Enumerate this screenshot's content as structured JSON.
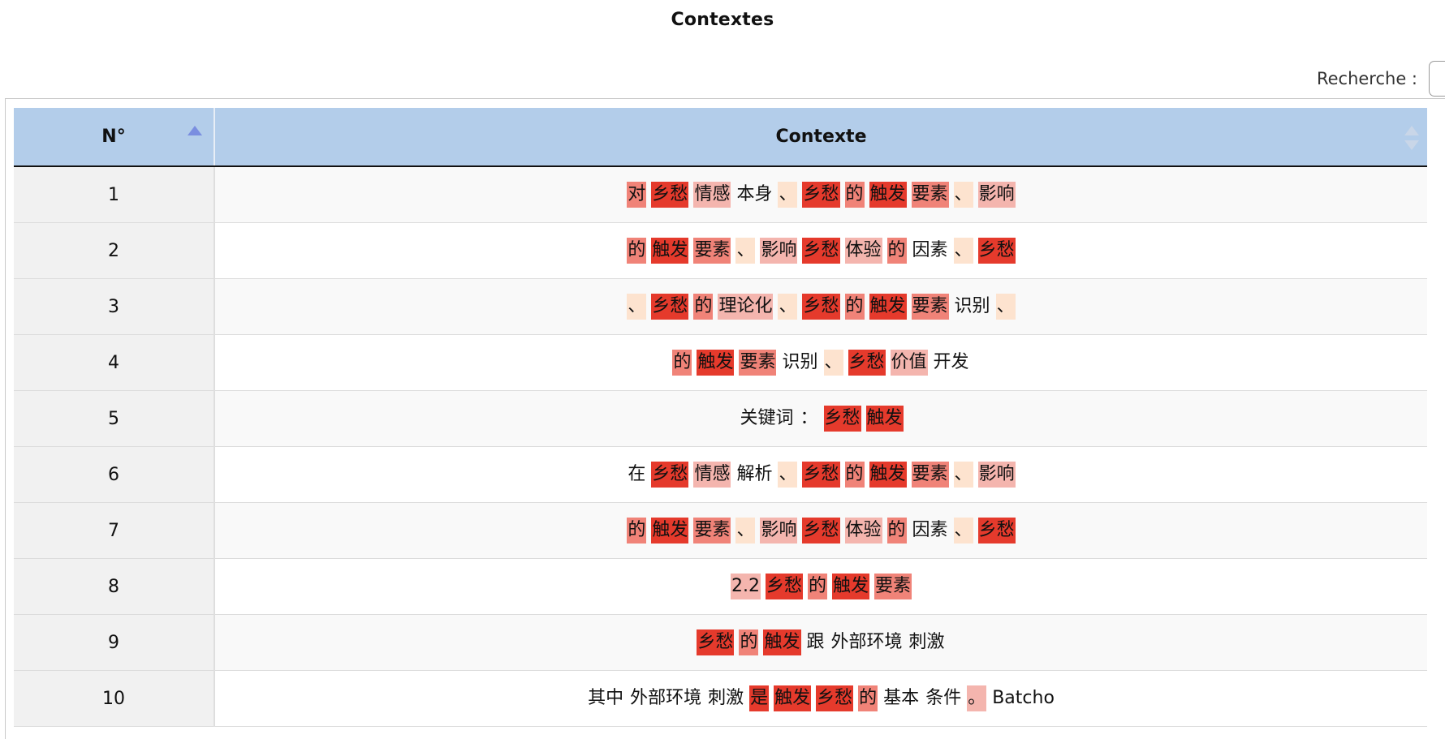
{
  "page": {
    "title": "Contextes"
  },
  "search": {
    "label": "Recherche :",
    "value": ""
  },
  "table": {
    "columns": [
      "N°",
      "Contexte"
    ],
    "rows": [
      {
        "num": "1",
        "tokens": [
          {
            "t": "对",
            "h": "h2"
          },
          {
            "t": "乡愁",
            "h": "h1"
          },
          {
            "t": "情感",
            "h": "h3"
          },
          {
            "t": "本身",
            "h": "h0"
          },
          {
            "t": "、",
            "h": "h4"
          },
          {
            "t": "乡愁",
            "h": "h1"
          },
          {
            "t": "的",
            "h": "h2"
          },
          {
            "t": "触发",
            "h": "h1"
          },
          {
            "t": "要素",
            "h": "h2"
          },
          {
            "t": "、",
            "h": "h4"
          },
          {
            "t": "影响",
            "h": "h3"
          }
        ]
      },
      {
        "num": "2",
        "tokens": [
          {
            "t": "的",
            "h": "h2"
          },
          {
            "t": "触发",
            "h": "h1"
          },
          {
            "t": "要素",
            "h": "h2"
          },
          {
            "t": "、",
            "h": "h4"
          },
          {
            "t": "影响",
            "h": "h3"
          },
          {
            "t": "乡愁",
            "h": "h1"
          },
          {
            "t": "体验",
            "h": "h3"
          },
          {
            "t": "的",
            "h": "h2"
          },
          {
            "t": "因素",
            "h": "h0"
          },
          {
            "t": "、",
            "h": "h4"
          },
          {
            "t": "乡愁",
            "h": "h1"
          }
        ]
      },
      {
        "num": "3",
        "tokens": [
          {
            "t": "、",
            "h": "h4"
          },
          {
            "t": "乡愁",
            "h": "h1"
          },
          {
            "t": "的",
            "h": "h2"
          },
          {
            "t": "理论化",
            "h": "h3"
          },
          {
            "t": "、",
            "h": "h4"
          },
          {
            "t": "乡愁",
            "h": "h1"
          },
          {
            "t": "的",
            "h": "h2"
          },
          {
            "t": "触发",
            "h": "h1"
          },
          {
            "t": "要素",
            "h": "h2"
          },
          {
            "t": "识别",
            "h": "h0"
          },
          {
            "t": "、",
            "h": "h4"
          }
        ]
      },
      {
        "num": "4",
        "tokens": [
          {
            "t": "的",
            "h": "h2"
          },
          {
            "t": "触发",
            "h": "h1"
          },
          {
            "t": "要素",
            "h": "h2"
          },
          {
            "t": "识别",
            "h": "h0"
          },
          {
            "t": "、",
            "h": "h4"
          },
          {
            "t": "乡愁",
            "h": "h1"
          },
          {
            "t": "价值",
            "h": "h3"
          },
          {
            "t": "开发",
            "h": "h0"
          }
        ]
      },
      {
        "num": "5",
        "tokens": [
          {
            "t": "关键词",
            "h": "h0"
          },
          {
            "t": "：",
            "h": "h0"
          },
          {
            "t": "乡愁",
            "h": "h1"
          },
          {
            "t": "触发",
            "h": "h1"
          }
        ]
      },
      {
        "num": "6",
        "tokens": [
          {
            "t": "在",
            "h": "h0"
          },
          {
            "t": "乡愁",
            "h": "h1"
          },
          {
            "t": "情感",
            "h": "h3"
          },
          {
            "t": "解析",
            "h": "h0"
          },
          {
            "t": "、",
            "h": "h4"
          },
          {
            "t": "乡愁",
            "h": "h1"
          },
          {
            "t": "的",
            "h": "h2"
          },
          {
            "t": "触发",
            "h": "h1"
          },
          {
            "t": "要素",
            "h": "h2"
          },
          {
            "t": "、",
            "h": "h4"
          },
          {
            "t": "影响",
            "h": "h3"
          }
        ]
      },
      {
        "num": "7",
        "tokens": [
          {
            "t": "的",
            "h": "h2"
          },
          {
            "t": "触发",
            "h": "h1"
          },
          {
            "t": "要素",
            "h": "h2"
          },
          {
            "t": "、",
            "h": "h4"
          },
          {
            "t": "影响",
            "h": "h3"
          },
          {
            "t": "乡愁",
            "h": "h1"
          },
          {
            "t": "体验",
            "h": "h3"
          },
          {
            "t": "的",
            "h": "h2"
          },
          {
            "t": "因素",
            "h": "h0"
          },
          {
            "t": "、",
            "h": "h4"
          },
          {
            "t": "乡愁",
            "h": "h1"
          }
        ]
      },
      {
        "num": "8",
        "tokens": [
          {
            "t": "2.2",
            "h": "h3"
          },
          {
            "t": "乡愁",
            "h": "h1"
          },
          {
            "t": "的",
            "h": "h2"
          },
          {
            "t": "触发",
            "h": "h1"
          },
          {
            "t": "要素",
            "h": "h2"
          }
        ]
      },
      {
        "num": "9",
        "tokens": [
          {
            "t": "乡愁",
            "h": "h1"
          },
          {
            "t": "的",
            "h": "h2"
          },
          {
            "t": "触发",
            "h": "h1"
          },
          {
            "t": "跟",
            "h": "h0"
          },
          {
            "t": "外部环境",
            "h": "h0"
          },
          {
            "t": "刺激",
            "h": "h0"
          }
        ]
      },
      {
        "num": "10",
        "tokens": [
          {
            "t": "其中",
            "h": "h0"
          },
          {
            "t": "外部环境",
            "h": "h0"
          },
          {
            "t": "刺激",
            "h": "h0"
          },
          {
            "t": "是",
            "h": "h1"
          },
          {
            "t": "触发",
            "h": "h1"
          },
          {
            "t": "乡愁",
            "h": "h1"
          },
          {
            "t": "的",
            "h": "h2"
          },
          {
            "t": "基本",
            "h": "h0"
          },
          {
            "t": "条件",
            "h": "h0"
          },
          {
            "t": "。",
            "h": "h3"
          },
          {
            "t": "Batcho",
            "h": "h0"
          }
        ]
      }
    ]
  },
  "colors": {
    "header_bg": "#b3cdea",
    "h1": "#e53a2c",
    "h2": "#f08378",
    "h3": "#f4b5ae",
    "h4": "#fde3cf"
  },
  "icons": {
    "sort_asc": "sort-asc-icon",
    "sort_both": "sort-both-icon"
  }
}
